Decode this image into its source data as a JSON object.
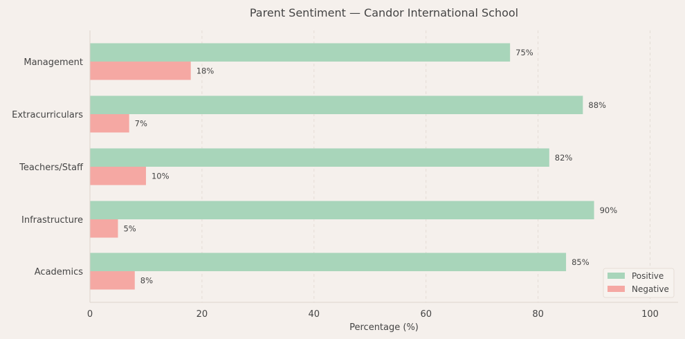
{
  "chart_data": {
    "type": "bar",
    "orientation": "horizontal",
    "title": "Parent Sentiment — Candor International School",
    "xlabel": "Percentage (%)",
    "ylabel": "",
    "xlim": [
      0,
      105
    ],
    "xticks": [
      0,
      20,
      40,
      60,
      80,
      100
    ],
    "grid": "vertical dashed",
    "legend_position": "bottom-right",
    "categories": [
      "Management",
      "Extracurriculars",
      "Teachers/Staff",
      "Infrastructure",
      "Academics"
    ],
    "series": [
      {
        "name": "Positive",
        "color": "#a8d5ba",
        "values": [
          75,
          88,
          82,
          90,
          85
        ],
        "labels": [
          "75%",
          "88%",
          "82%",
          "90%",
          "85%"
        ]
      },
      {
        "name": "Negative",
        "color": "#f5a8a3",
        "values": [
          18,
          7,
          10,
          5,
          8
        ],
        "labels": [
          "18%",
          "7%",
          "10%",
          "5%",
          "8%"
        ]
      }
    ]
  }
}
